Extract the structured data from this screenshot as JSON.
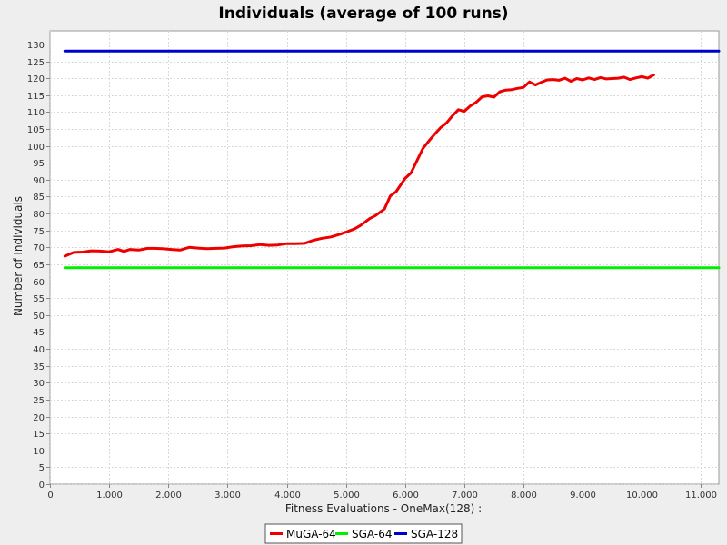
{
  "chart_data": {
    "type": "line",
    "title": "Individuals (average of 100 runs)",
    "xlabel": "Fitness Evaluations - OneMax(128) :",
    "ylabel": "Number of Individuals",
    "xlim": [
      0,
      11300
    ],
    "ylim": [
      0,
      134
    ],
    "x_ticks": [
      0,
      1000,
      2000,
      3000,
      4000,
      5000,
      6000,
      7000,
      8000,
      9000,
      10000,
      11000
    ],
    "x_tick_labels": [
      "0",
      "1.000",
      "2.000",
      "3.000",
      "4.000",
      "5.000",
      "6.000",
      "7.000",
      "8.000",
      "9.000",
      "10.000",
      "11.000"
    ],
    "y_ticks": [
      0,
      5,
      10,
      15,
      20,
      25,
      30,
      35,
      40,
      45,
      50,
      55,
      60,
      65,
      70,
      75,
      80,
      85,
      90,
      95,
      100,
      105,
      110,
      115,
      120,
      125,
      130
    ],
    "grid": true,
    "legend_position": "bottom-center",
    "series": [
      {
        "name": "MuGA-64",
        "color": "#ee0000",
        "x": [
          250,
          400,
          550,
          700,
          850,
          1000,
          1150,
          1250,
          1350,
          1500,
          1650,
          1750,
          1900,
          2050,
          2200,
          2350,
          2500,
          2650,
          2800,
          2950,
          3100,
          3250,
          3400,
          3550,
          3700,
          3850,
          4000,
          4150,
          4300,
          4450,
          4600,
          4750,
          4900,
          5000,
          5150,
          5250,
          5400,
          5500,
          5650,
          5750,
          5850,
          6000,
          6100,
          6200,
          6300,
          6400,
          6500,
          6600,
          6700,
          6800,
          6900,
          7000,
          7100,
          7200,
          7300,
          7400,
          7500,
          7600,
          7700,
          7800,
          7900,
          8000,
          8100,
          8200,
          8300,
          8400,
          8500,
          8600,
          8700,
          8800,
          8900,
          9000,
          9100,
          9200,
          9300,
          9400,
          9500,
          9600,
          9700,
          9800,
          9900,
          10000,
          10100,
          10200
        ],
        "values": [
          67.4,
          68.5,
          68.6,
          69.0,
          68.9,
          68.7,
          69.4,
          68.8,
          69.4,
          69.2,
          69.7,
          69.7,
          69.6,
          69.4,
          69.2,
          70.0,
          69.8,
          69.6,
          69.7,
          69.8,
          70.2,
          70.4,
          70.5,
          70.8,
          70.6,
          70.7,
          71.1,
          71.1,
          71.2,
          72.1,
          72.7,
          73.1,
          73.9,
          74.5,
          75.5,
          76.5,
          78.5,
          79.4,
          81.3,
          85.2,
          86.5,
          90.4,
          92.0,
          95.6,
          99.2,
          101.4,
          103.5,
          105.4,
          106.8,
          108.9,
          110.7,
          110.2,
          111.8,
          112.9,
          114.5,
          114.8,
          114.4,
          116.0,
          116.5,
          116.6,
          117.0,
          117.3,
          118.9,
          118.0,
          118.8,
          119.5,
          119.6,
          119.4,
          120.0,
          119.1,
          119.9,
          119.5,
          120.1,
          119.6,
          120.2,
          119.8,
          119.9,
          120.0,
          120.3,
          119.6,
          120.1,
          120.5,
          120.0,
          121.0
        ]
      },
      {
        "name": "SGA-64",
        "color": "#00ee00",
        "x": [
          250,
          11300
        ],
        "values": [
          64,
          64
        ]
      },
      {
        "name": "SGA-128",
        "color": "#0000cc",
        "x": [
          250,
          11300
        ],
        "values": [
          128,
          128
        ]
      }
    ]
  }
}
